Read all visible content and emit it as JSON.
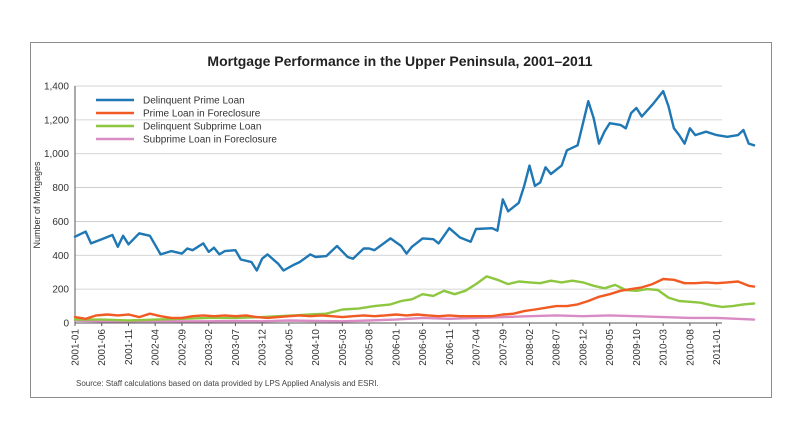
{
  "chart_data": {
    "type": "line",
    "title": "Mortgage Performance in the Upper Peninsula, 2001–2011",
    "ylabel": "Number of Mortgages",
    "xlabel": "",
    "ylim": [
      0,
      1400
    ],
    "yticks": [
      "0",
      "200",
      "400",
      "600",
      "800",
      "1,000",
      "1,200",
      "1,400"
    ],
    "xlim": [
      "2001-01",
      "2011-02"
    ],
    "xticks": [
      "2001-01",
      "2001-06",
      "2001-11",
      "2002-04",
      "2002-09",
      "2003-02",
      "2003-07",
      "2003-12",
      "2004-05",
      "2004-10",
      "2005-03",
      "2005-08",
      "2006-01",
      "2006-06",
      "2006-11",
      "2007-04",
      "2007-09",
      "2008-02",
      "2008-07",
      "2008-12",
      "2009-05",
      "2009-10",
      "2010-03",
      "2010-08",
      "2011-01"
    ],
    "grid": "horizontal",
    "legend_position": "top-left",
    "source": "Source: Staff calculations based on data provided by LPS Applied Analysis and ESRI.",
    "series": [
      {
        "name": "Delinquent Prime Loan",
        "color": "#1f77b4",
        "points": [
          [
            "2001-01",
            510
          ],
          [
            "2001-03",
            540
          ],
          [
            "2001-04",
            470
          ],
          [
            "2001-06",
            495
          ],
          [
            "2001-08",
            520
          ],
          [
            "2001-09",
            450
          ],
          [
            "2001-10",
            515
          ],
          [
            "2001-11",
            465
          ],
          [
            "2002-01",
            530
          ],
          [
            "2002-03",
            515
          ],
          [
            "2002-05",
            405
          ],
          [
            "2002-07",
            425
          ],
          [
            "2002-09",
            410
          ],
          [
            "2002-10",
            440
          ],
          [
            "2002-11",
            430
          ],
          [
            "2003-01",
            470
          ],
          [
            "2003-02",
            420
          ],
          [
            "2003-03",
            445
          ],
          [
            "2003-04",
            405
          ],
          [
            "2003-05",
            425
          ],
          [
            "2003-07",
            430
          ],
          [
            "2003-08",
            375
          ],
          [
            "2003-10",
            360
          ],
          [
            "2003-11",
            310
          ],
          [
            "2003-12",
            380
          ],
          [
            "2004-01",
            405
          ],
          [
            "2004-03",
            350
          ],
          [
            "2004-04",
            310
          ],
          [
            "2004-06",
            345
          ],
          [
            "2004-07",
            360
          ],
          [
            "2004-09",
            405
          ],
          [
            "2004-10",
            390
          ],
          [
            "2004-12",
            395
          ],
          [
            "2005-02",
            455
          ],
          [
            "2005-04",
            390
          ],
          [
            "2005-05",
            380
          ],
          [
            "2005-07",
            440
          ],
          [
            "2005-08",
            440
          ],
          [
            "2005-09",
            430
          ],
          [
            "2005-12",
            500
          ],
          [
            "2006-02",
            455
          ],
          [
            "2006-03",
            410
          ],
          [
            "2006-04",
            450
          ],
          [
            "2006-06",
            500
          ],
          [
            "2006-08",
            495
          ],
          [
            "2006-09",
            470
          ],
          [
            "2006-11",
            560
          ],
          [
            "2007-01",
            505
          ],
          [
            "2007-03",
            480
          ],
          [
            "2007-04",
            555
          ],
          [
            "2007-07",
            560
          ],
          [
            "2007-08",
            545
          ],
          [
            "2007-09",
            730
          ],
          [
            "2007-10",
            660
          ],
          [
            "2007-12",
            710
          ],
          [
            "2008-01",
            810
          ],
          [
            "2008-02",
            930
          ],
          [
            "2008-03",
            810
          ],
          [
            "2008-04",
            830
          ],
          [
            "2008-05",
            920
          ],
          [
            "2008-06",
            880
          ],
          [
            "2008-08",
            930
          ],
          [
            "2008-09",
            1020
          ],
          [
            "2008-11",
            1050
          ],
          [
            "2008-12",
            1180
          ],
          [
            "2009-01",
            1310
          ],
          [
            "2009-02",
            1210
          ],
          [
            "2009-03",
            1060
          ],
          [
            "2009-04",
            1130
          ],
          [
            "2009-05",
            1180
          ],
          [
            "2009-07",
            1170
          ],
          [
            "2009-08",
            1150
          ],
          [
            "2009-09",
            1240
          ],
          [
            "2009-10",
            1270
          ],
          [
            "2009-11",
            1220
          ],
          [
            "2010-01",
            1290
          ],
          [
            "2010-03",
            1370
          ],
          [
            "2010-04",
            1280
          ],
          [
            "2010-05",
            1150
          ],
          [
            "2010-06",
            1110
          ],
          [
            "2010-07",
            1060
          ],
          [
            "2010-08",
            1150
          ],
          [
            "2010-09",
            1110
          ],
          [
            "2010-11",
            1130
          ],
          [
            "2011-01",
            1110
          ],
          [
            "2011-03",
            1100
          ],
          [
            "2011-05",
            1110
          ],
          [
            "2011-06",
            1140
          ],
          [
            "2011-07",
            1060
          ],
          [
            "2011-08",
            1050
          ]
        ]
      },
      {
        "name": "Prime Loan in Foreclosure",
        "color": "#f15a22",
        "points": [
          [
            "2001-01",
            35
          ],
          [
            "2001-03",
            25
          ],
          [
            "2001-05",
            45
          ],
          [
            "2001-07",
            50
          ],
          [
            "2001-09",
            45
          ],
          [
            "2001-11",
            50
          ],
          [
            "2002-01",
            35
          ],
          [
            "2002-03",
            55
          ],
          [
            "2002-05",
            40
          ],
          [
            "2002-07",
            30
          ],
          [
            "2002-09",
            30
          ],
          [
            "2002-11",
            40
          ],
          [
            "2003-01",
            45
          ],
          [
            "2003-03",
            40
          ],
          [
            "2003-05",
            45
          ],
          [
            "2003-07",
            40
          ],
          [
            "2003-09",
            45
          ],
          [
            "2003-11",
            35
          ],
          [
            "2004-01",
            30
          ],
          [
            "2004-03",
            35
          ],
          [
            "2004-05",
            40
          ],
          [
            "2004-07",
            45
          ],
          [
            "2004-09",
            40
          ],
          [
            "2004-11",
            45
          ],
          [
            "2005-01",
            40
          ],
          [
            "2005-03",
            35
          ],
          [
            "2005-05",
            40
          ],
          [
            "2005-07",
            45
          ],
          [
            "2005-09",
            40
          ],
          [
            "2005-11",
            45
          ],
          [
            "2006-01",
            50
          ],
          [
            "2006-03",
            45
          ],
          [
            "2006-05",
            50
          ],
          [
            "2006-07",
            45
          ],
          [
            "2006-09",
            40
          ],
          [
            "2006-11",
            45
          ],
          [
            "2007-01",
            40
          ],
          [
            "2007-03",
            40
          ],
          [
            "2007-05",
            40
          ],
          [
            "2007-07",
            40
          ],
          [
            "2007-09",
            50
          ],
          [
            "2007-11",
            55
          ],
          [
            "2008-01",
            70
          ],
          [
            "2008-03",
            80
          ],
          [
            "2008-05",
            90
          ],
          [
            "2008-07",
            100
          ],
          [
            "2008-09",
            100
          ],
          [
            "2008-11",
            110
          ],
          [
            "2009-01",
            130
          ],
          [
            "2009-03",
            155
          ],
          [
            "2009-05",
            170
          ],
          [
            "2009-07",
            190
          ],
          [
            "2009-09",
            200
          ],
          [
            "2009-11",
            210
          ],
          [
            "2010-01",
            230
          ],
          [
            "2010-03",
            260
          ],
          [
            "2010-05",
            255
          ],
          [
            "2010-07",
            235
          ],
          [
            "2010-09",
            235
          ],
          [
            "2010-11",
            240
          ],
          [
            "2011-01",
            235
          ],
          [
            "2011-03",
            240
          ],
          [
            "2011-05",
            245
          ],
          [
            "2011-07",
            220
          ],
          [
            "2011-08",
            215
          ]
        ]
      },
      {
        "name": "Delinquent Subprime Loan",
        "color": "#8dc63f",
        "points": [
          [
            "2001-01",
            20
          ],
          [
            "2001-06",
            20
          ],
          [
            "2001-11",
            15
          ],
          [
            "2002-04",
            20
          ],
          [
            "2002-09",
            25
          ],
          [
            "2003-02",
            30
          ],
          [
            "2003-07",
            30
          ],
          [
            "2003-12",
            35
          ],
          [
            "2004-03",
            40
          ],
          [
            "2004-06",
            45
          ],
          [
            "2004-09",
            50
          ],
          [
            "2004-12",
            55
          ],
          [
            "2005-03",
            80
          ],
          [
            "2005-06",
            85
          ],
          [
            "2005-09",
            100
          ],
          [
            "2005-12",
            110
          ],
          [
            "2006-02",
            130
          ],
          [
            "2006-04",
            140
          ],
          [
            "2006-06",
            170
          ],
          [
            "2006-08",
            160
          ],
          [
            "2006-10",
            190
          ],
          [
            "2006-12",
            170
          ],
          [
            "2007-02",
            190
          ],
          [
            "2007-04",
            230
          ],
          [
            "2007-06",
            275
          ],
          [
            "2007-08",
            255
          ],
          [
            "2007-10",
            230
          ],
          [
            "2007-12",
            245
          ],
          [
            "2008-02",
            240
          ],
          [
            "2008-04",
            235
          ],
          [
            "2008-06",
            250
          ],
          [
            "2008-08",
            240
          ],
          [
            "2008-10",
            250
          ],
          [
            "2008-12",
            240
          ],
          [
            "2009-02",
            220
          ],
          [
            "2009-04",
            205
          ],
          [
            "2009-06",
            225
          ],
          [
            "2009-08",
            195
          ],
          [
            "2009-10",
            190
          ],
          [
            "2009-12",
            200
          ],
          [
            "2010-02",
            195
          ],
          [
            "2010-04",
            150
          ],
          [
            "2010-06",
            130
          ],
          [
            "2010-08",
            125
          ],
          [
            "2010-10",
            120
          ],
          [
            "2010-12",
            105
          ],
          [
            "2011-02",
            95
          ],
          [
            "2011-04",
            100
          ],
          [
            "2011-06",
            110
          ],
          [
            "2011-08",
            115
          ]
        ]
      },
      {
        "name": "Subprime Loan in Foreclosure",
        "color": "#d98bc4",
        "points": [
          [
            "2001-01",
            15
          ],
          [
            "2001-06",
            10
          ],
          [
            "2001-11",
            10
          ],
          [
            "2002-04",
            12
          ],
          [
            "2002-09",
            10
          ],
          [
            "2003-02",
            10
          ],
          [
            "2003-07",
            12
          ],
          [
            "2003-12",
            10
          ],
          [
            "2004-05",
            15
          ],
          [
            "2004-10",
            12
          ],
          [
            "2005-03",
            10
          ],
          [
            "2005-08",
            15
          ],
          [
            "2006-01",
            20
          ],
          [
            "2006-06",
            30
          ],
          [
            "2006-11",
            25
          ],
          [
            "2007-04",
            30
          ],
          [
            "2007-09",
            35
          ],
          [
            "2008-02",
            40
          ],
          [
            "2008-07",
            45
          ],
          [
            "2008-12",
            40
          ],
          [
            "2009-05",
            45
          ],
          [
            "2009-10",
            40
          ],
          [
            "2010-03",
            35
          ],
          [
            "2010-08",
            30
          ],
          [
            "2011-01",
            30
          ],
          [
            "2011-08",
            20
          ]
        ]
      }
    ]
  }
}
